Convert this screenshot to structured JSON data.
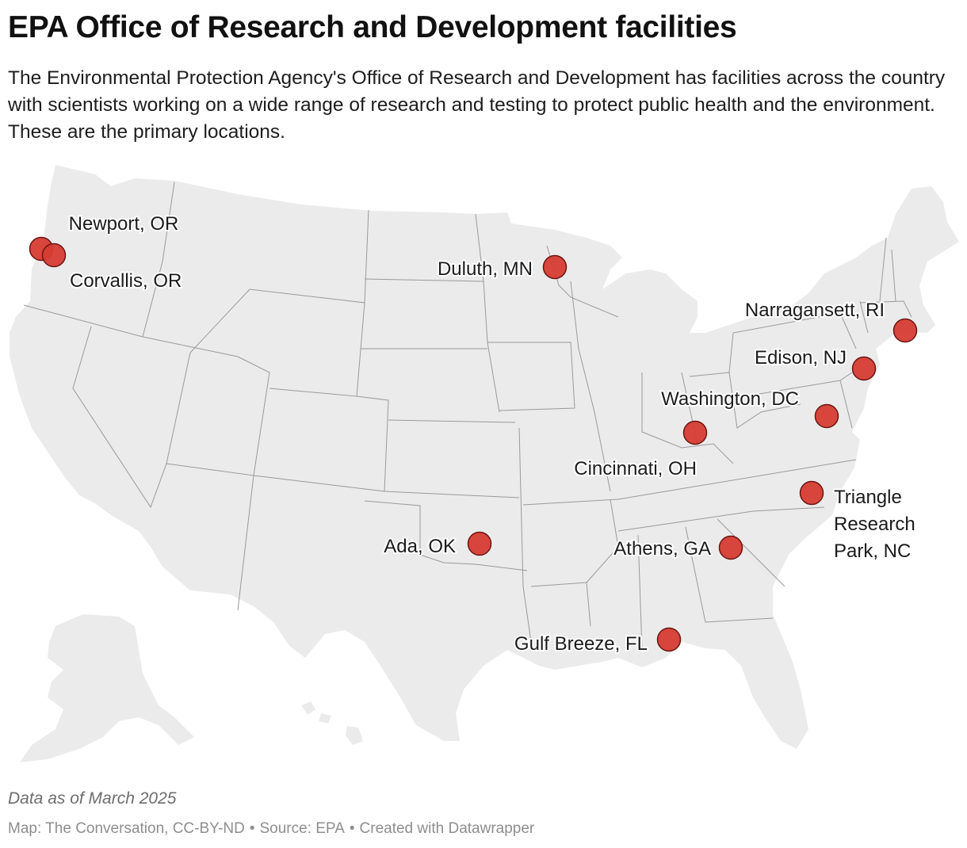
{
  "title": "EPA Office of Research and Development facilities",
  "subtitle": "The Environmental Protection Agency's Office of Research and Development has facilities across the country with scientists working on a wide range of research and testing to protect public health and the environment. These are the primary locations.",
  "colors": {
    "land": "#ebebeb",
    "border": "#9a9a9a",
    "marker_fill": "#d63c33",
    "marker_stroke": "#6b1612"
  },
  "markers": [
    {
      "label": [
        "Newport, OR"
      ],
      "lon": -124.05,
      "lat": 44.64
    },
    {
      "label": [
        "Corvallis, OR"
      ],
      "lon": -123.26,
      "lat": 44.56
    },
    {
      "label": [
        "Duluth, MN"
      ],
      "lon": -92.1,
      "lat": 46.79
    },
    {
      "label": [
        "Narragansett, RI"
      ],
      "lon": -71.45,
      "lat": 41.43
    },
    {
      "label": [
        "Edison, NJ"
      ],
      "lon": -74.41,
      "lat": 40.52
    },
    {
      "label": [
        "Washington, DC"
      ],
      "lon": -77.04,
      "lat": 38.9
    },
    {
      "label": [
        "Cincinnati, OH"
      ],
      "lon": -84.51,
      "lat": 39.1
    },
    {
      "label": [
        "Triangle",
        "Research",
        "Park, NC"
      ],
      "lon": -78.86,
      "lat": 35.9
    },
    {
      "label": [
        "Ada, OK"
      ],
      "lon": -96.68,
      "lat": 34.77
    },
    {
      "label": [
        "Athens, GA"
      ],
      "lon": -83.38,
      "lat": 33.95
    },
    {
      "label": [
        "Gulf Breeze, FL"
      ],
      "lon": -87.16,
      "lat": 30.36
    }
  ],
  "notes": "Data as of March 2025",
  "footer": {
    "map_credit": "Map: The Conversation, CC-BY-ND",
    "source": "Source: EPA",
    "created": "Created with Datawrapper",
    "separator": "•"
  }
}
